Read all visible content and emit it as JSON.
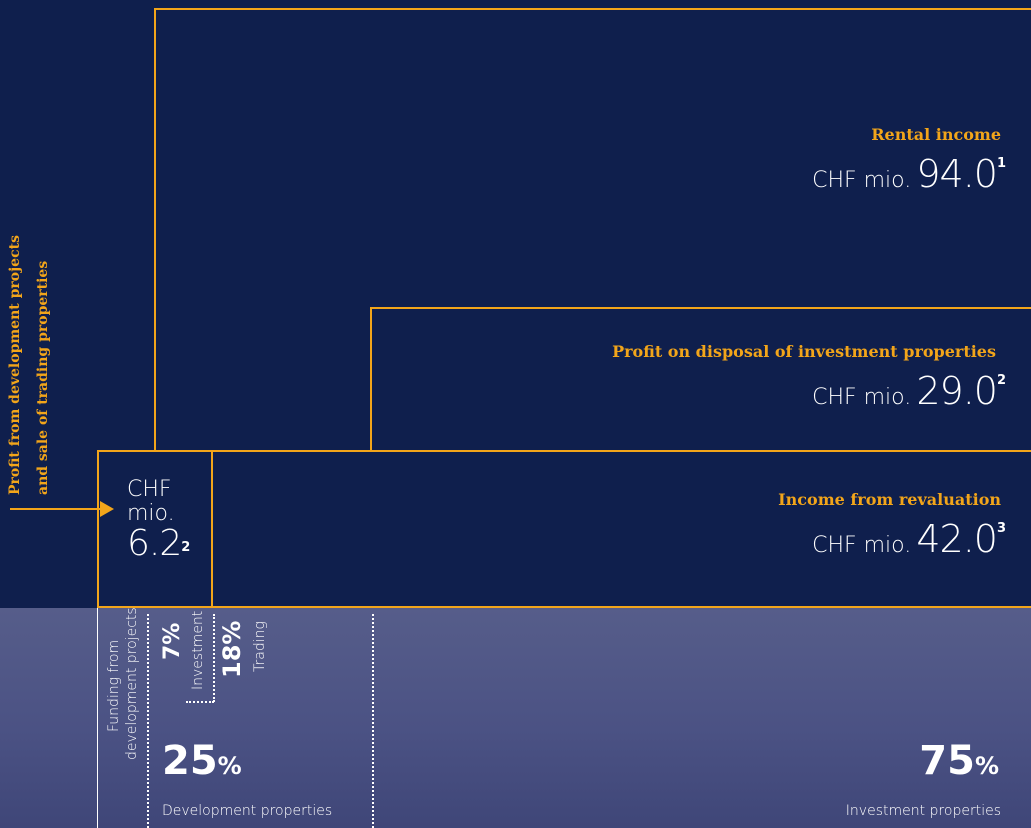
{
  "side_label": {
    "line1": "Profit from development projects",
    "line2": "and sale of trading properties"
  },
  "rental": {
    "label": "Rental income",
    "prefix": "CHF mio.",
    "amount": "94.0",
    "note": "1"
  },
  "disposal": {
    "label": "Profit on disposal of investment properties",
    "prefix": "CHF mio.",
    "amount": "29.0",
    "note": "2"
  },
  "revaluation": {
    "label": "Income from revaluation",
    "prefix": "CHF mio.",
    "amount": "42.0",
    "note": "3"
  },
  "development_profit": {
    "line1": "CHF",
    "line2": "mio.",
    "amount": "6.2",
    "note": "2"
  },
  "funding": {
    "line1": "Funding from",
    "line2": "development projects"
  },
  "split_investment": {
    "percent": "7%",
    "label": "Investment"
  },
  "split_trading": {
    "percent": "18%",
    "label": "Trading"
  },
  "development_share": {
    "number": "25",
    "symbol": "%",
    "label": "Development properties"
  },
  "investment_share": {
    "number": "75",
    "symbol": "%",
    "label": "Investment properties"
  },
  "colors": {
    "navy": "#0f1f4d",
    "gold": "#f2a51a",
    "slate": "#4f5687",
    "white": "#ffffff"
  }
}
